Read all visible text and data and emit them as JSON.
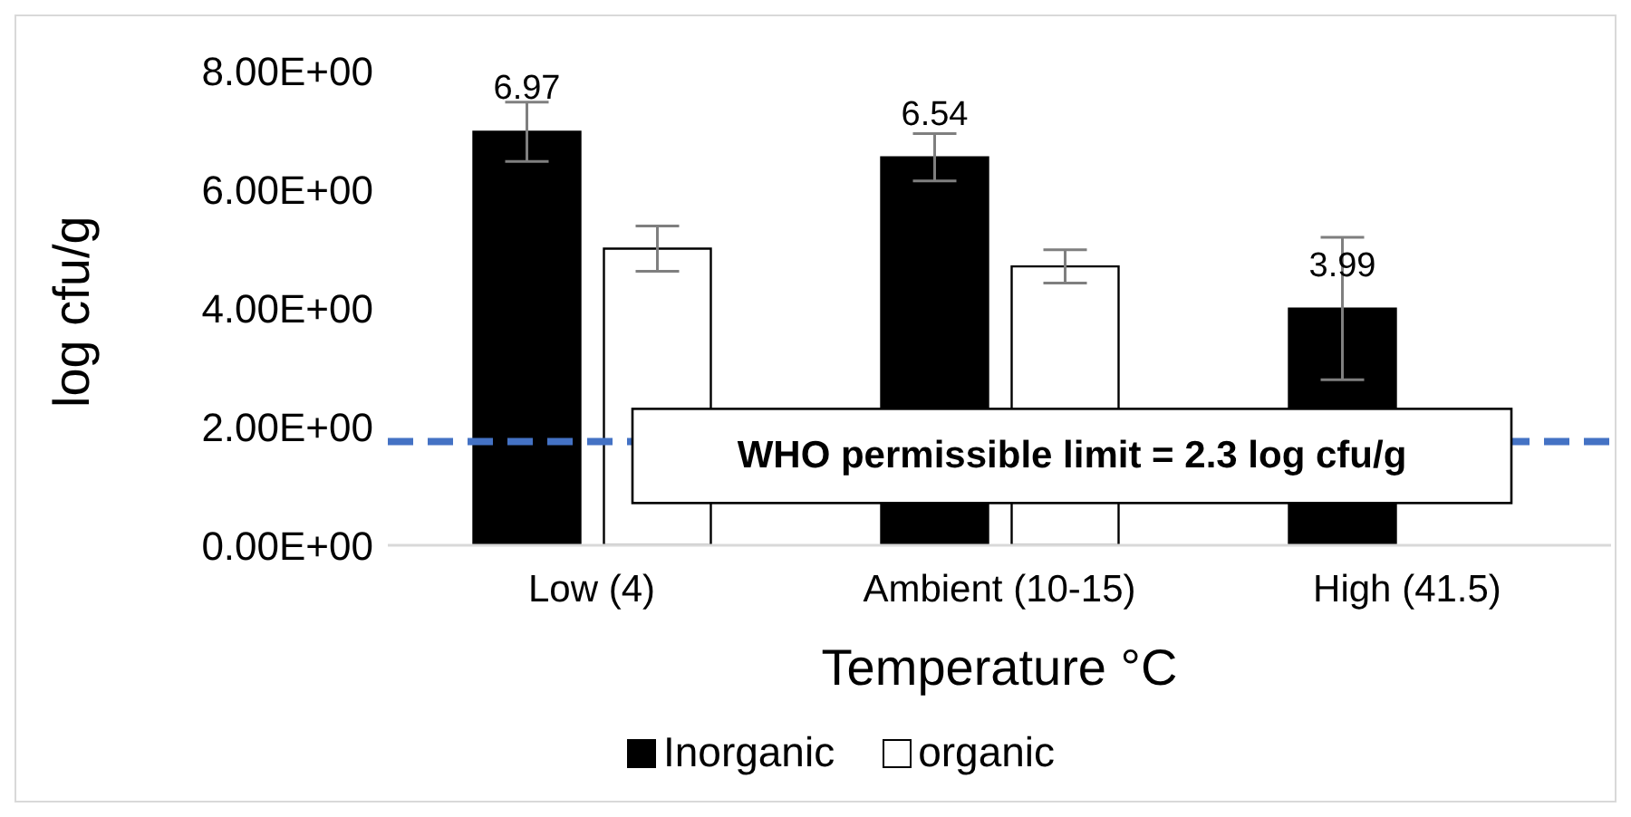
{
  "chart_data": {
    "type": "bar",
    "xlabel": "Temperature °C",
    "ylabel": "log cfu/g",
    "categories": [
      "Low (4)",
      "Ambient (10-15)",
      "High (41.5)"
    ],
    "series": [
      {
        "name": "Inorganic",
        "color": "#000000",
        "values": [
          6.97,
          6.54,
          3.99
        ],
        "errors": [
          0.5,
          0.4,
          1.2
        ],
        "value_labels": [
          "6.97",
          "6.54",
          "3.99"
        ]
      },
      {
        "name": "organic",
        "color": "#ffffff",
        "values": [
          5.0,
          4.7,
          null
        ],
        "errors": [
          0.38,
          0.28,
          null
        ]
      }
    ],
    "ylim": [
      0,
      8
    ],
    "yticks": [
      {
        "value": 0,
        "label": "0.00E+00"
      },
      {
        "value": 2,
        "label": "2.00E+00"
      },
      {
        "value": 4,
        "label": "4.00E+00"
      },
      {
        "value": 6,
        "label": "6.00E+00"
      },
      {
        "value": 8,
        "label": "8.00E+00"
      }
    ],
    "ref_lines": [
      {
        "axis": "y",
        "value": 1.75,
        "color": "#4472c4",
        "line_style": "dashed"
      }
    ],
    "annotations": [
      "WHO permissible limit = 2.3 log cfu/g"
    ],
    "grid": false,
    "legend": "bottom"
  }
}
